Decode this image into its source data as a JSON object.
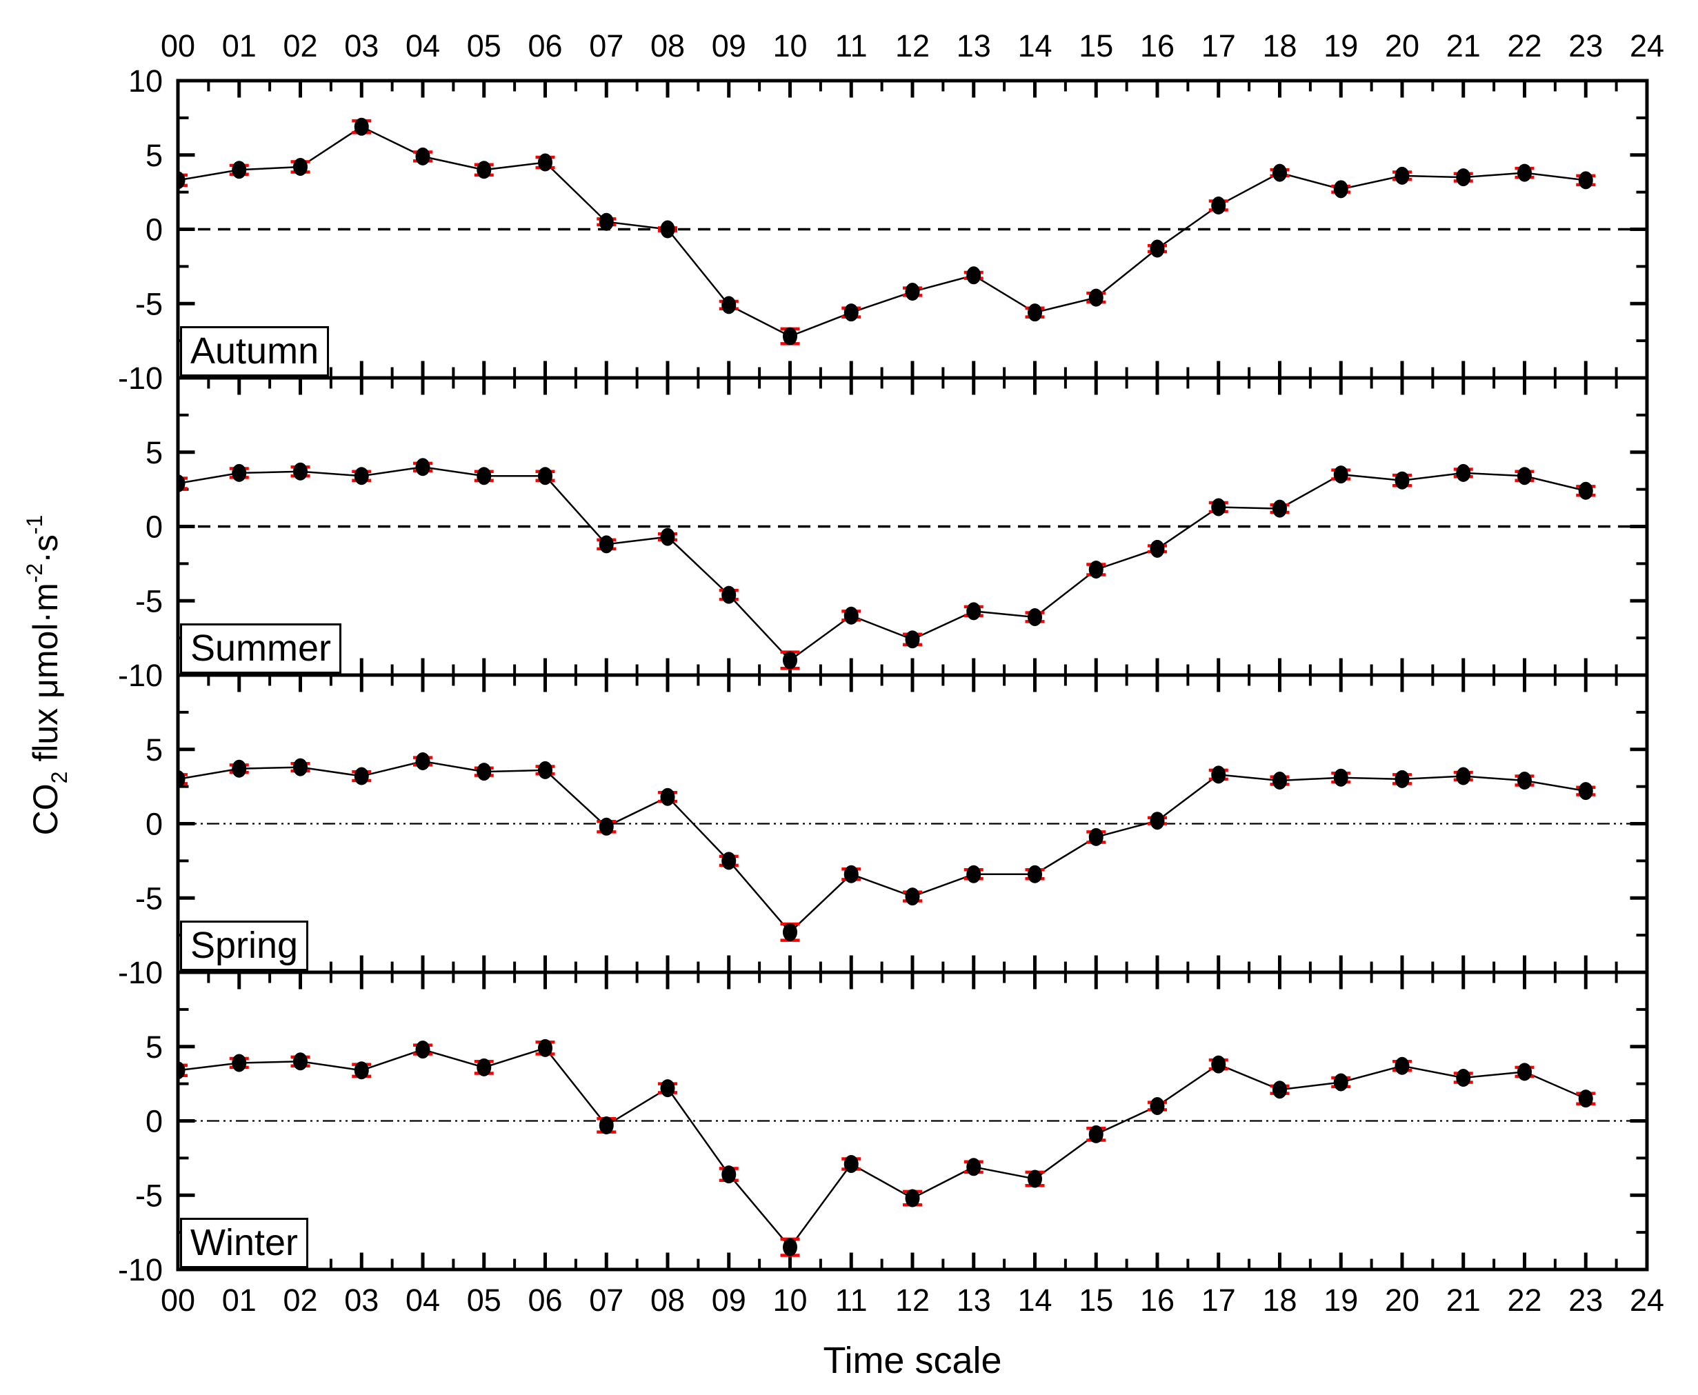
{
  "figure": {
    "x_axis_title": "Time scale",
    "y_axis_title_plain": "CO2 flux umol.m-2.s-1",
    "y_label_parts": [
      {
        "text": "CO",
        "style": "normal"
      },
      {
        "text": "2",
        "style": "sub"
      },
      {
        "text": " flux μmol·m",
        "style": "normal"
      },
      {
        "text": "-2",
        "style": "sup"
      },
      {
        "text": "·s",
        "style": "normal"
      },
      {
        "text": "-1",
        "style": "sup"
      }
    ]
  },
  "chart_data": {
    "type": "line",
    "title": "",
    "xlabel": "Time scale",
    "ylabel": "CO2 flux μmol·m⁻²·s⁻¹",
    "xlim": [
      0,
      24
    ],
    "ylim": [
      -10,
      10
    ],
    "grid": false,
    "legend_position": "none",
    "marker_color": "#000000",
    "line_color": "#000000",
    "error_color": "#ff0000",
    "x": [
      0,
      1,
      2,
      3,
      4,
      5,
      6,
      7,
      8,
      9,
      10,
      11,
      12,
      13,
      14,
      15,
      16,
      17,
      18,
      19,
      20,
      21,
      22,
      23
    ],
    "x_tick_labels": [
      "00",
      "01",
      "02",
      "03",
      "04",
      "05",
      "06",
      "07",
      "08",
      "09",
      "10",
      "11",
      "12",
      "13",
      "14",
      "15",
      "16",
      "17",
      "18",
      "19",
      "20",
      "21",
      "22",
      "23",
      "24"
    ],
    "y_tick_labels": [
      "10",
      "5",
      "0",
      "-5",
      "-10"
    ],
    "y_tick_values": [
      10,
      5,
      0,
      -5,
      -10
    ],
    "panels": [
      {
        "label": "Autumn",
        "zero_line": "dashed",
        "values": [
          3.3,
          4.0,
          4.2,
          6.9,
          4.9,
          4.0,
          4.5,
          0.5,
          0.0,
          -5.1,
          -7.2,
          -5.6,
          -4.2,
          -3.1,
          -5.6,
          -4.6,
          -1.3,
          1.6,
          3.8,
          2.7,
          3.6,
          3.5,
          3.8,
          3.3
        ],
        "errors": [
          0.35,
          0.3,
          0.35,
          0.4,
          0.3,
          0.35,
          0.35,
          0.2,
          0.1,
          0.25,
          0.5,
          0.3,
          0.25,
          0.2,
          0.3,
          0.3,
          0.2,
          0.3,
          0.2,
          0.2,
          0.25,
          0.25,
          0.3,
          0.3
        ]
      },
      {
        "label": "Summer",
        "zero_line": "dashed",
        "values": [
          2.9,
          3.6,
          3.7,
          3.4,
          4.0,
          3.4,
          3.4,
          -1.2,
          -0.7,
          -4.6,
          -9.0,
          -6.0,
          -7.6,
          -5.7,
          -6.1,
          -2.9,
          -1.5,
          1.3,
          1.2,
          3.5,
          3.1,
          3.6,
          3.4,
          2.4
        ],
        "errors": [
          0.35,
          0.3,
          0.3,
          0.3,
          0.25,
          0.3,
          0.3,
          0.3,
          0.2,
          0.3,
          0.55,
          0.3,
          0.35,
          0.3,
          0.3,
          0.35,
          0.2,
          0.3,
          0.25,
          0.3,
          0.35,
          0.25,
          0.3,
          0.3
        ]
      },
      {
        "label": "Spring",
        "zero_line": "dash-dot",
        "values": [
          3.0,
          3.7,
          3.8,
          3.2,
          4.2,
          3.5,
          3.6,
          -0.2,
          1.8,
          -2.5,
          -7.3,
          -3.4,
          -4.9,
          -3.4,
          -3.4,
          -0.9,
          0.2,
          3.3,
          2.9,
          3.1,
          3.0,
          3.2,
          2.9,
          2.2
        ],
        "errors": [
          0.3,
          0.25,
          0.25,
          0.3,
          0.25,
          0.25,
          0.25,
          0.35,
          0.3,
          0.3,
          0.55,
          0.35,
          0.3,
          0.3,
          0.3,
          0.35,
          0.2,
          0.3,
          0.25,
          0.3,
          0.3,
          0.25,
          0.3,
          0.25
        ]
      },
      {
        "label": "Winter",
        "zero_line": "dash-dot",
        "values": [
          3.4,
          3.9,
          4.0,
          3.4,
          4.8,
          3.6,
          4.9,
          -0.3,
          2.2,
          -3.6,
          -8.5,
          -2.9,
          -5.2,
          -3.1,
          -3.9,
          -0.9,
          1.0,
          3.8,
          2.1,
          2.6,
          3.7,
          2.9,
          3.3,
          1.5
        ],
        "errors": [
          0.35,
          0.3,
          0.3,
          0.4,
          0.3,
          0.4,
          0.4,
          0.45,
          0.3,
          0.4,
          0.55,
          0.35,
          0.45,
          0.35,
          0.45,
          0.4,
          0.25,
          0.3,
          0.25,
          0.3,
          0.3,
          0.3,
          0.3,
          0.35
        ]
      }
    ]
  }
}
